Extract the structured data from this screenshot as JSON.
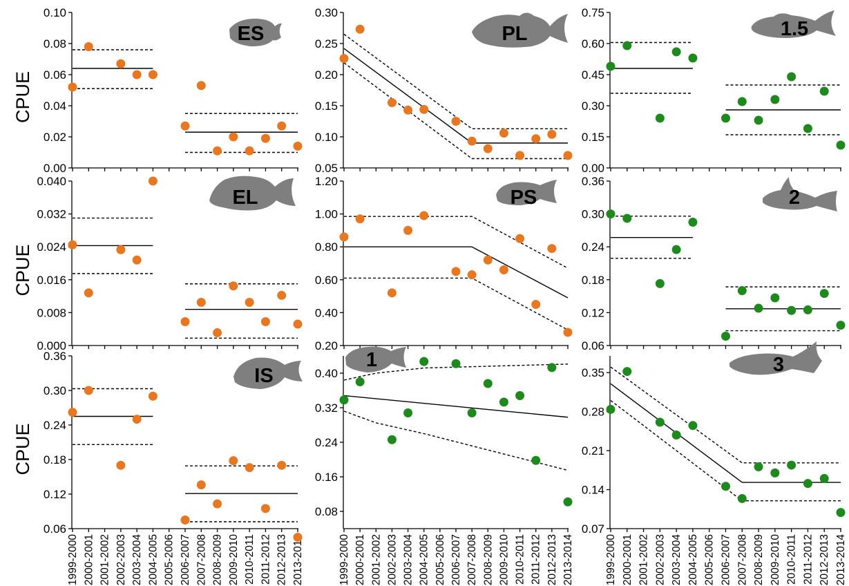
{
  "ylabel": "CPUE",
  "categories": [
    "1999-2000",
    "2000-2001",
    "2001-2002",
    "2002-2003",
    "2003-2004",
    "2004-2005",
    "2005-2006",
    "2006-2007",
    "2007-2008",
    "2008-2009",
    "2009-2010",
    "2010-2011",
    "2011-2012",
    "2012-2013",
    "2013-2014"
  ],
  "colors": {
    "orange": "#E87722",
    "green": "#1E8A1E",
    "silhouette": "#7f7f7f"
  },
  "chart_data": [
    {
      "type": "scatter",
      "label": "ES",
      "color": "orange",
      "ylabel": "CPUE",
      "ylim": [
        0,
        0.1
      ],
      "yticks": [
        "0.00",
        "0.02",
        "0.04",
        "0.06",
        "0.08",
        "0.10"
      ],
      "values": [
        0.052,
        0.078,
        null,
        0.067,
        0.06,
        0.06,
        null,
        0.027,
        0.053,
        0.011,
        0.02,
        0.011,
        0.019,
        0.027,
        0.014
      ],
      "fit": [
        {
          "x": [
            0,
            5
          ],
          "y": [
            0.064,
            0.064
          ]
        },
        {
          "x": [
            7,
            14
          ],
          "y": [
            0.023,
            0.023
          ]
        }
      ],
      "ci": [
        {
          "x": [
            0,
            5
          ],
          "y": [
            0.076,
            0.076
          ]
        },
        {
          "x": [
            0,
            5
          ],
          "y": [
            0.051,
            0.051
          ]
        },
        {
          "x": [
            7,
            14
          ],
          "y": [
            0.035,
            0.035
          ]
        },
        {
          "x": [
            7,
            14
          ],
          "y": [
            0.01,
            0.01
          ]
        }
      ]
    },
    {
      "type": "scatter",
      "label": "PL",
      "color": "orange",
      "ylabel": "",
      "ylim": [
        0.05,
        0.3
      ],
      "yticks": [
        "0.05",
        "0.10",
        "0.15",
        "0.20",
        "0.25",
        "0.30"
      ],
      "values": [
        0.226,
        0.273,
        null,
        0.155,
        0.143,
        0.144,
        null,
        0.125,
        0.093,
        0.081,
        0.106,
        0.07,
        0.097,
        0.104,
        0.07
      ],
      "fit": [
        {
          "x": [
            0,
            8,
            14
          ],
          "y": [
            0.242,
            0.09,
            0.09
          ]
        }
      ],
      "ci": [
        {
          "x": [
            0,
            8,
            14
          ],
          "y": [
            0.265,
            0.113,
            0.113
          ]
        },
        {
          "x": [
            0,
            8,
            14
          ],
          "y": [
            0.219,
            0.065,
            0.065
          ]
        }
      ]
    },
    {
      "type": "scatter",
      "label": "1.5",
      "color": "green",
      "ylabel": "",
      "ylim": [
        0,
        0.75
      ],
      "yticks": [
        "0.00",
        "0.15",
        "0.30",
        "0.45",
        "0.60",
        "0.75"
      ],
      "values": [
        0.49,
        0.59,
        null,
        0.24,
        0.56,
        0.53,
        null,
        0.24,
        0.32,
        0.23,
        0.33,
        0.44,
        0.19,
        0.37,
        0.11
      ],
      "fit": [
        {
          "x": [
            0,
            5
          ],
          "y": [
            0.48,
            0.48
          ]
        },
        {
          "x": [
            7,
            14
          ],
          "y": [
            0.28,
            0.28
          ]
        }
      ],
      "ci": [
        {
          "x": [
            0,
            5
          ],
          "y": [
            0.605,
            0.605
          ]
        },
        {
          "x": [
            0,
            5
          ],
          "y": [
            0.36,
            0.36
          ]
        },
        {
          "x": [
            7,
            14
          ],
          "y": [
            0.4,
            0.4
          ]
        },
        {
          "x": [
            7,
            14
          ],
          "y": [
            0.16,
            0.16
          ]
        }
      ]
    },
    {
      "type": "scatter",
      "label": "EL",
      "color": "orange",
      "ylabel": "CPUE",
      "ylim": [
        0,
        0.04
      ],
      "yticks": [
        "0.000",
        "0.008",
        "0.016",
        "0.024",
        "0.032",
        "0.040"
      ],
      "values": [
        0.0245,
        0.0128,
        null,
        0.0233,
        0.0208,
        0.04,
        null,
        0.0058,
        0.0105,
        0.0031,
        0.0145,
        0.0105,
        0.0058,
        0.0122,
        0.0052
      ],
      "fit": [
        {
          "x": [
            0,
            5
          ],
          "y": [
            0.0243,
            0.0243
          ]
        },
        {
          "x": [
            7,
            14
          ],
          "y": [
            0.0088,
            0.0088
          ]
        }
      ],
      "ci": [
        {
          "x": [
            0,
            5
          ],
          "y": [
            0.031,
            0.031
          ]
        },
        {
          "x": [
            0,
            5
          ],
          "y": [
            0.0175,
            0.0175
          ]
        },
        {
          "x": [
            7,
            14
          ],
          "y": [
            0.015,
            0.015
          ]
        },
        {
          "x": [
            7,
            14
          ],
          "y": [
            0.0018,
            0.0018
          ]
        }
      ]
    },
    {
      "type": "scatter",
      "label": "PS",
      "color": "orange",
      "ylabel": "",
      "ylim": [
        0.2,
        1.2
      ],
      "yticks": [
        "0.20",
        "0.40",
        "0.60",
        "0.80",
        "1.00",
        "1.20"
      ],
      "values": [
        0.86,
        0.97,
        null,
        0.52,
        0.9,
        0.99,
        null,
        0.65,
        0.63,
        0.72,
        0.66,
        0.85,
        0.45,
        0.79,
        0.28
      ],
      "fit": [
        {
          "x": [
            0,
            8,
            14
          ],
          "y": [
            0.8,
            0.8,
            0.49
          ]
        }
      ],
      "ci": [
        {
          "x": [
            0,
            8,
            14
          ],
          "y": [
            0.985,
            0.985,
            0.67
          ]
        },
        {
          "x": [
            0,
            8,
            14
          ],
          "y": [
            0.61,
            0.61,
            0.295
          ]
        }
      ]
    },
    {
      "type": "scatter",
      "label": "2",
      "color": "green",
      "ylabel": "",
      "ylim": [
        0.06,
        0.36
      ],
      "yticks": [
        "0.06",
        "0.12",
        "0.18",
        "0.24",
        "0.30",
        "0.36"
      ],
      "values": [
        0.3,
        0.292,
        null,
        0.173,
        0.235,
        0.285,
        null,
        0.077,
        0.16,
        0.128,
        0.147,
        0.124,
        0.125,
        0.155,
        0.097
      ],
      "fit": [
        {
          "x": [
            0,
            5
          ],
          "y": [
            0.257,
            0.257
          ]
        },
        {
          "x": [
            7,
            14
          ],
          "y": [
            0.127,
            0.127
          ]
        }
      ],
      "ci": [
        {
          "x": [
            0,
            5
          ],
          "y": [
            0.296,
            0.296
          ]
        },
        {
          "x": [
            0,
            5
          ],
          "y": [
            0.219,
            0.219
          ]
        },
        {
          "x": [
            7,
            14
          ],
          "y": [
            0.167,
            0.167
          ]
        },
        {
          "x": [
            7,
            14
          ],
          "y": [
            0.087,
            0.087
          ]
        }
      ]
    },
    {
      "type": "scatter",
      "label": "IS",
      "color": "orange",
      "ylabel": "CPUE",
      "ylim": [
        0.06,
        0.36
      ],
      "yticks": [
        "0.06",
        "0.12",
        "0.18",
        "0.24",
        "0.30",
        "0.36"
      ],
      "values": [
        0.262,
        0.3,
        null,
        0.17,
        0.25,
        0.29,
        null,
        0.075,
        0.136,
        0.103,
        0.178,
        0.166,
        0.095,
        0.17,
        0.045
      ],
      "fit": [
        {
          "x": [
            0,
            5
          ],
          "y": [
            0.255,
            0.255
          ]
        },
        {
          "x": [
            7,
            14
          ],
          "y": [
            0.121,
            0.121
          ]
        }
      ],
      "ci": [
        {
          "x": [
            0,
            5
          ],
          "y": [
            0.303,
            0.303
          ]
        },
        {
          "x": [
            0,
            5
          ],
          "y": [
            0.206,
            0.206
          ]
        },
        {
          "x": [
            7,
            14
          ],
          "y": [
            0.169,
            0.169
          ]
        },
        {
          "x": [
            7,
            14
          ],
          "y": [
            0.072,
            0.072
          ]
        }
      ]
    },
    {
      "type": "scatter",
      "label": "1",
      "color": "green",
      "ylabel": "",
      "ylim": [
        0.04,
        0.44
      ],
      "yticks": [
        "0.08",
        "0.16",
        "0.24",
        "0.32",
        "0.40"
      ],
      "values": [
        0.338,
        0.38,
        null,
        0.246,
        0.308,
        0.427,
        null,
        0.422,
        0.308,
        0.376,
        0.333,
        0.348,
        0.198,
        0.413,
        0.102
      ],
      "fit": [
        {
          "x": [
            0,
            14
          ],
          "y": [
            0.348,
            0.298
          ]
        }
      ],
      "ci": [
        {
          "x": [
            0,
            2,
            5,
            14
          ],
          "y": [
            0.384,
            0.4,
            0.412,
            0.421
          ]
        },
        {
          "x": [
            0,
            2,
            5,
            14
          ],
          "y": [
            0.312,
            0.285,
            0.26,
            0.175
          ]
        }
      ]
    },
    {
      "type": "scatter",
      "label": "3",
      "color": "green",
      "ylabel": "",
      "ylim": [
        0.07,
        0.38
      ],
      "yticks": [
        "0.07",
        "0.14",
        "0.21",
        "0.28",
        "0.35"
      ],
      "values": [
        0.284,
        0.352,
        null,
        0.261,
        0.238,
        0.255,
        null,
        0.146,
        0.124,
        0.181,
        0.17,
        0.184,
        0.151,
        0.16,
        0.099
      ],
      "fit": [
        {
          "x": [
            0,
            8,
            14
          ],
          "y": [
            0.33,
            0.153,
            0.153
          ]
        }
      ],
      "ci": [
        {
          "x": [
            0,
            8,
            14
          ],
          "y": [
            0.36,
            0.188,
            0.188
          ]
        },
        {
          "x": [
            0,
            8,
            14
          ],
          "y": [
            0.3,
            0.12,
            0.12
          ]
        }
      ]
    }
  ]
}
